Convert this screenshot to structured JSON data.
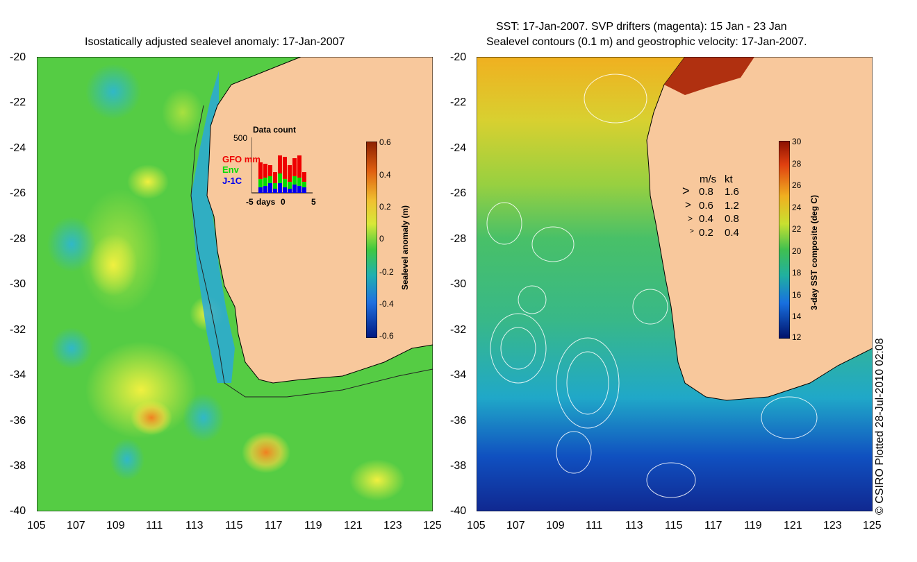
{
  "left_panel": {
    "title": "Isostatically adjusted sealevel anomaly: 17-Jan-2007",
    "y_ticks": [
      "-20",
      "-22",
      "-24",
      "-26",
      "-28",
      "-30",
      "-32",
      "-34",
      "-36",
      "-38",
      "-40"
    ],
    "x_ticks": [
      "105",
      "107",
      "109",
      "111",
      "113",
      "115",
      "117",
      "119",
      "121",
      "123",
      "125"
    ],
    "colorbar": {
      "title": "Sealevel anomaly (m)",
      "ticks": [
        "0.6",
        "0.4",
        "0.2",
        "0",
        "-0.2",
        "-0.4",
        "-0.6"
      ],
      "range": [
        -0.6,
        0.6
      ]
    },
    "inset": {
      "title": "Data count",
      "max_label": "500",
      "x_label": "days",
      "x_ticks": [
        "-5",
        "0",
        "5"
      ],
      "legend": [
        {
          "label": "GFO mm",
          "color": "#ee0000"
        },
        {
          "label": "Env",
          "color": "#00dd00"
        },
        {
          "label": "J-1C",
          "color": "#0000ee"
        }
      ]
    }
  },
  "right_panel": {
    "title_line1": "SST: 17-Jan-2007. SVP drifters (magenta): 15 Jan - 23 Jan",
    "title_line2": "Sealevel contours (0.1 m) and geostrophic velocity: 17-Jan-2007.",
    "y_ticks": [
      "-20",
      "-22",
      "-24",
      "-26",
      "-28",
      "-30",
      "-32",
      "-34",
      "-36",
      "-38",
      "-40"
    ],
    "x_ticks": [
      "105",
      "107",
      "109",
      "111",
      "113",
      "115",
      "117",
      "119",
      "121",
      "123",
      "125"
    ],
    "colorbar": {
      "title": "3-day SST composite (deg C)",
      "ticks": [
        "30",
        "28",
        "26",
        "24",
        "22",
        "20",
        "18",
        "16",
        "14",
        "12"
      ],
      "range": [
        12,
        30
      ]
    },
    "velocity_legend": {
      "header_ms": "m/s",
      "header_kt": "kt",
      "rows": [
        {
          "ms": "0.8",
          "kt": "1.6"
        },
        {
          "ms": "0.6",
          "kt": "1.2"
        },
        {
          "ms": "0.4",
          "kt": "0.8"
        },
        {
          "ms": "0.2",
          "kt": "0.4"
        }
      ]
    }
  },
  "copyright": "© CSIRO Plotted 28-Jul-2010 02:08",
  "colors": {
    "land": "#f8c89c",
    "sla_background": "#44cc44",
    "sst_background": "#44bb77"
  }
}
